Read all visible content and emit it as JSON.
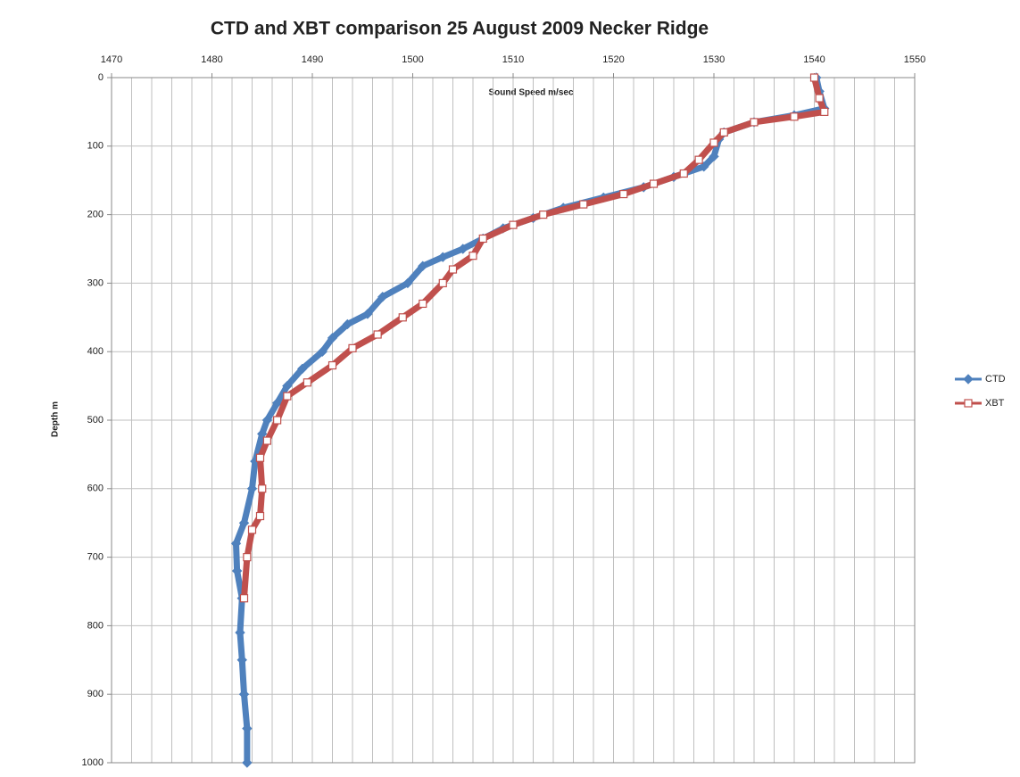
{
  "chart_data": {
    "type": "line",
    "title": "CTD and XBT comparison 25 August 2009 Necker Ridge",
    "x_label": "Sound Speed m/sec",
    "y_label": "Depth m",
    "xlim": [
      1470,
      1550
    ],
    "xticks": [
      1470,
      1480,
      1490,
      1500,
      1510,
      1520,
      1530,
      1540,
      1550
    ],
    "x_gridlines": [
      1470,
      1472,
      1474,
      1476,
      1478,
      1480,
      1482,
      1484,
      1486,
      1488,
      1490,
      1492,
      1494,
      1496,
      1498,
      1500,
      1502,
      1504,
      1506,
      1508,
      1510,
      1512,
      1514,
      1516,
      1518,
      1520,
      1522,
      1524,
      1526,
      1528,
      1530,
      1532,
      1534,
      1536,
      1538,
      1540,
      1542,
      1544,
      1546,
      1548,
      1550
    ],
    "x_axis_position": "top",
    "ylim": [
      0,
      1000
    ],
    "y_inverted": true,
    "yticks": [
      0,
      100,
      200,
      300,
      400,
      500,
      600,
      700,
      800,
      900,
      1000
    ],
    "grid": true,
    "legend": "right",
    "series": [
      {
        "name": "CTD",
        "color": "#4f81bd",
        "marker": "diamond",
        "x": [
          1540.2,
          1540.5,
          1541,
          1538,
          1534,
          1531,
          1530.5,
          1530,
          1529,
          1526,
          1523,
          1519,
          1515,
          1512,
          1509,
          1507,
          1505,
          1503,
          1501,
          1499.5,
          1497,
          1495.5,
          1493.5,
          1492,
          1491,
          1489,
          1487.5,
          1486.5,
          1485.5,
          1485,
          1484.3,
          1484,
          1483.2,
          1482.4,
          1482.5,
          1483,
          1482.8,
          1483,
          1483.2,
          1483.5,
          1483.5
        ],
        "y": [
          0,
          20,
          45,
          55,
          65,
          80,
          90,
          115,
          130,
          145,
          160,
          175,
          190,
          205,
          220,
          235,
          250,
          262,
          275,
          300,
          320,
          345,
          360,
          380,
          400,
          425,
          450,
          475,
          500,
          520,
          560,
          600,
          650,
          680,
          720,
          760,
          810,
          850,
          900,
          950,
          1000
        ]
      },
      {
        "name": "XBT",
        "color": "#c0504d",
        "marker": "square",
        "x": [
          1540,
          1540.5,
          1541,
          1538,
          1534,
          1531,
          1530,
          1528.5,
          1527,
          1524,
          1521,
          1517,
          1513,
          1510,
          1507,
          1506,
          1504,
          1503,
          1501,
          1499,
          1496.5,
          1494,
          1492,
          1489.5,
          1487.5,
          1486.5,
          1485.5,
          1484.8,
          1485,
          1484.8,
          1484,
          1483.5,
          1483.2
        ],
        "y": [
          0,
          30,
          50,
          57,
          65,
          80,
          95,
          120,
          140,
          155,
          170,
          185,
          200,
          215,
          235,
          260,
          280,
          300,
          330,
          350,
          375,
          395,
          420,
          445,
          465,
          500,
          530,
          555,
          600,
          640,
          660,
          700,
          760
        ]
      }
    ]
  }
}
